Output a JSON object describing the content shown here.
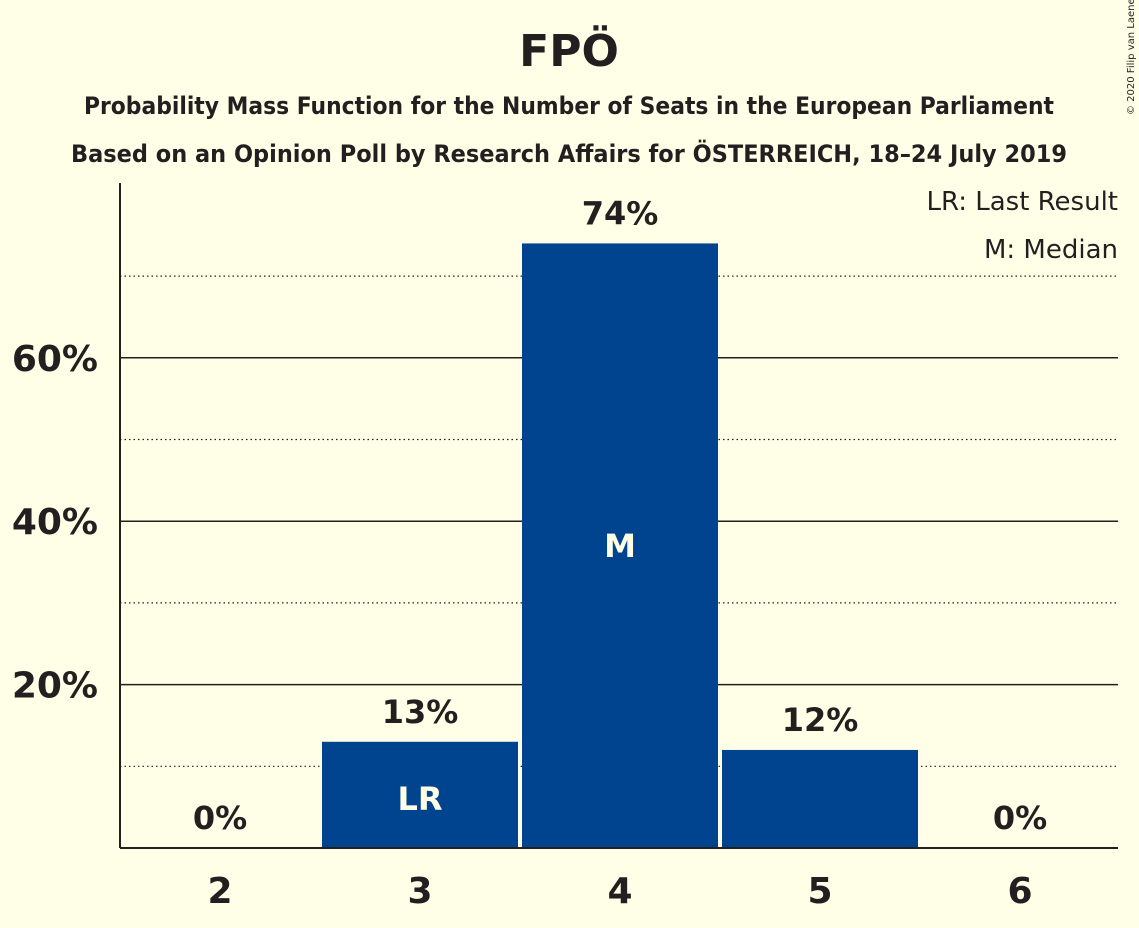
{
  "chart_data": {
    "type": "bar",
    "title": "FPÖ",
    "subtitle_line1": "Probability Mass Function for the Number of Seats in the European Parliament",
    "subtitle_line2": "Based on an Opinion Poll by Research Affairs for ÖSTERREICH, 18–24 July 2019",
    "copyright": "© 2020 Filip van Laenen",
    "categories": [
      "2",
      "3",
      "4",
      "5",
      "6"
    ],
    "values": [
      0,
      13,
      74,
      12,
      0
    ],
    "value_labels": [
      "0%",
      "13%",
      "74%",
      "12%",
      "0%"
    ],
    "bar_markers": [
      "",
      "LR",
      "M",
      "",
      ""
    ],
    "ylim": [
      0,
      80
    ],
    "y_ticks": [
      20,
      40,
      60
    ],
    "y_tick_labels": [
      "20%",
      "40%",
      "60%"
    ],
    "y_minor_ticks": [
      10,
      30,
      50,
      70
    ],
    "legend": {
      "placement": "top-right",
      "entries": [
        "LR: Last Result",
        "M: Median"
      ]
    },
    "colors": {
      "bar": "#00448F",
      "background": "#FFFEE6",
      "text": "#231F20",
      "marker_text": "#FFFEE6"
    }
  }
}
